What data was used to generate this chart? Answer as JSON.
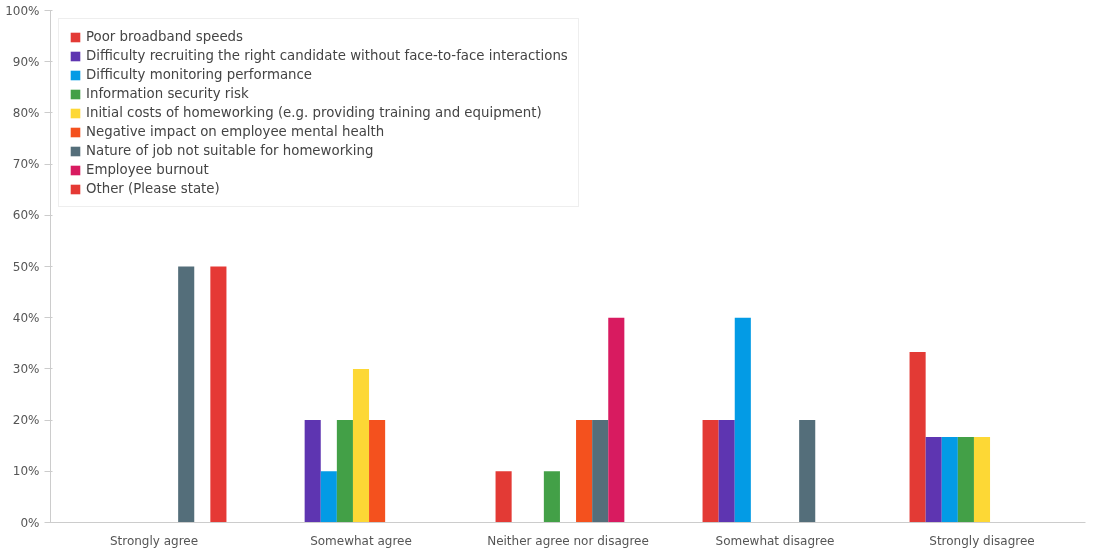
{
  "chart_data": {
    "type": "bar",
    "categories": [
      "Strongly agree",
      "Somewhat agree",
      "Neither agree nor disagree",
      "Somewhat disagree",
      "Strongly disagree"
    ],
    "series": [
      {
        "name": "Poor broadband speeds",
        "color": "#e33a35",
        "values": [
          0,
          0,
          10,
          20,
          33.3
        ]
      },
      {
        "name": "Difficulty recruiting the right candidate without face-to-face interactions",
        "color": "#5e35b1",
        "values": [
          0,
          20,
          0,
          20,
          16.7
        ]
      },
      {
        "name": "Difficulty monitoring performance",
        "color": "#039be5",
        "values": [
          0,
          10,
          0,
          40,
          16.7
        ]
      },
      {
        "name": "Information security risk",
        "color": "#43a047",
        "values": [
          0,
          20,
          10,
          0,
          16.7
        ]
      },
      {
        "name": "Initial costs of homeworking (e.g. providing training and equipment)",
        "color": "#fdd835",
        "values": [
          0,
          30,
          0,
          0,
          16.7
        ]
      },
      {
        "name": "Negative impact on employee mental health",
        "color": "#f4511e",
        "values": [
          0,
          20,
          20,
          0,
          0
        ]
      },
      {
        "name": "Nature of job not suitable for homeworking",
        "color": "#546e7a",
        "values": [
          50,
          0,
          20,
          20,
          0
        ]
      },
      {
        "name": "Employee burnout",
        "color": "#d81b60",
        "values": [
          0,
          0,
          40,
          0,
          0
        ]
      },
      {
        "name": "Other (Please state)",
        "color": "#e53935",
        "values": [
          50,
          0,
          0,
          0,
          0
        ]
      }
    ],
    "ylim": [
      0,
      100
    ],
    "yticks": [
      {
        "value": 0,
        "label": "0%"
      },
      {
        "value": 10,
        "label": "10%"
      },
      {
        "value": 20,
        "label": "20%"
      },
      {
        "value": 30,
        "label": "30%"
      },
      {
        "value": 40,
        "label": "40%"
      },
      {
        "value": 50,
        "label": "50%"
      },
      {
        "value": 60,
        "label": "60%"
      },
      {
        "value": 70,
        "label": "70%"
      },
      {
        "value": 80,
        "label": "80%"
      },
      {
        "value": 90,
        "label": "90%"
      },
      {
        "value": 100,
        "label": "100%"
      }
    ],
    "grid": false,
    "legend": "top left"
  }
}
